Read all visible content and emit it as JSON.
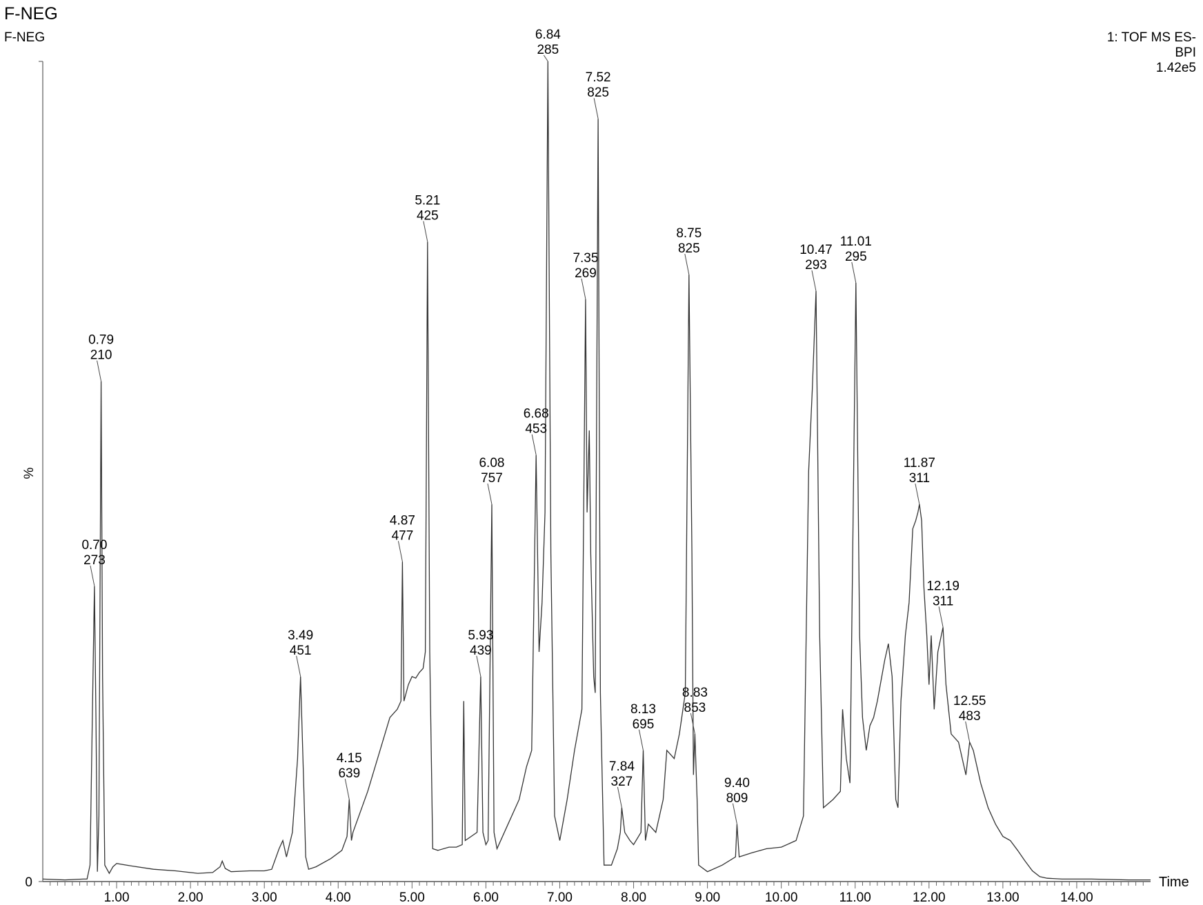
{
  "header": {
    "title": "F-NEG",
    "subtitle": "F-NEG",
    "info_line1": "1: TOF MS ES-",
    "info_line2": "BPI",
    "info_line3": "1.42e5"
  },
  "chart_data": {
    "type": "line",
    "title": "F-NEG",
    "xlabel": "Time",
    "ylabel": "%",
    "xlim": [
      0.0,
      15.0
    ],
    "ylim": [
      0,
      100
    ],
    "xticks": [
      "1.00",
      "2.00",
      "3.00",
      "4.00",
      "5.00",
      "6.00",
      "7.00",
      "8.00",
      "9.00",
      "10.00",
      "11.00",
      "12.00",
      "13.00",
      "14.00"
    ],
    "ytick_label": "0",
    "series": [
      {
        "values_time_percent": [
          [
            0.0,
            0.3
          ],
          [
            0.3,
            0.2
          ],
          [
            0.55,
            0.3
          ],
          [
            0.6,
            0.3
          ],
          [
            0.64,
            2.0
          ],
          [
            0.68,
            25
          ],
          [
            0.7,
            36
          ],
          [
            0.72,
            20
          ],
          [
            0.74,
            1.2
          ],
          [
            0.76,
            8
          ],
          [
            0.79,
            61
          ],
          [
            0.81,
            25
          ],
          [
            0.84,
            2
          ],
          [
            0.9,
            1.0
          ],
          [
            0.95,
            1.8
          ],
          [
            1.0,
            2.2
          ],
          [
            1.2,
            1.9
          ],
          [
            1.5,
            1.5
          ],
          [
            1.8,
            1.3
          ],
          [
            2.1,
            1.0
          ],
          [
            2.3,
            1.1
          ],
          [
            2.4,
            1.8
          ],
          [
            2.43,
            2.5
          ],
          [
            2.47,
            1.6
          ],
          [
            2.55,
            1.2
          ],
          [
            2.8,
            1.3
          ],
          [
            3.0,
            1.3
          ],
          [
            3.1,
            1.5
          ],
          [
            3.2,
            4
          ],
          [
            3.25,
            5
          ],
          [
            3.3,
            3
          ],
          [
            3.38,
            6
          ],
          [
            3.45,
            15
          ],
          [
            3.49,
            25
          ],
          [
            3.53,
            13
          ],
          [
            3.56,
            3
          ],
          [
            3.6,
            1.5
          ],
          [
            3.7,
            1.8
          ],
          [
            3.9,
            2.8
          ],
          [
            4.05,
            3.8
          ],
          [
            4.12,
            5.5
          ],
          [
            4.15,
            10
          ],
          [
            4.18,
            5
          ],
          [
            4.2,
            6
          ],
          [
            4.4,
            11
          ],
          [
            4.6,
            17
          ],
          [
            4.7,
            20
          ],
          [
            4.8,
            21
          ],
          [
            4.85,
            22
          ],
          [
            4.87,
            39
          ],
          [
            4.89,
            22
          ],
          [
            4.95,
            24
          ],
          [
            5.0,
            25
          ],
          [
            5.05,
            24.8
          ],
          [
            5.1,
            25.5
          ],
          [
            5.15,
            26
          ],
          [
            5.18,
            28
          ],
          [
            5.21,
            78
          ],
          [
            5.24,
            28
          ],
          [
            5.28,
            4
          ],
          [
            5.35,
            3.8
          ],
          [
            5.5,
            4.2
          ],
          [
            5.6,
            4.2
          ],
          [
            5.68,
            4.5
          ],
          [
            5.7,
            22
          ],
          [
            5.72,
            5
          ],
          [
            5.8,
            5.5
          ],
          [
            5.88,
            6
          ],
          [
            5.93,
            25
          ],
          [
            5.96,
            6
          ],
          [
            6.0,
            4.5
          ],
          [
            6.03,
            5
          ],
          [
            6.08,
            46
          ],
          [
            6.11,
            6
          ],
          [
            6.15,
            4
          ],
          [
            6.3,
            7
          ],
          [
            6.45,
            10
          ],
          [
            6.55,
            14
          ],
          [
            6.62,
            16
          ],
          [
            6.68,
            52
          ],
          [
            6.72,
            28
          ],
          [
            6.76,
            34
          ],
          [
            6.8,
            45
          ],
          [
            6.84,
            100
          ],
          [
            6.88,
            40
          ],
          [
            6.93,
            8
          ],
          [
            7.0,
            5
          ],
          [
            7.1,
            10
          ],
          [
            7.2,
            16
          ],
          [
            7.3,
            21
          ],
          [
            7.35,
            71
          ],
          [
            7.37,
            45
          ],
          [
            7.4,
            55
          ],
          [
            7.42,
            40
          ],
          [
            7.46,
            25
          ],
          [
            7.48,
            23
          ],
          [
            7.52,
            93
          ],
          [
            7.55,
            23
          ],
          [
            7.6,
            2
          ],
          [
            7.7,
            2
          ],
          [
            7.78,
            4
          ],
          [
            7.82,
            6
          ],
          [
            7.84,
            9
          ],
          [
            7.88,
            6
          ],
          [
            7.95,
            5
          ],
          [
            8.0,
            4.5
          ],
          [
            8.1,
            6
          ],
          [
            8.13,
            16
          ],
          [
            8.16,
            5
          ],
          [
            8.2,
            7
          ],
          [
            8.3,
            6
          ],
          [
            8.4,
            10
          ],
          [
            8.45,
            16
          ],
          [
            8.55,
            15
          ],
          [
            8.62,
            18
          ],
          [
            8.7,
            23
          ],
          [
            8.75,
            74
          ],
          [
            8.79,
            40
          ],
          [
            8.81,
            13
          ],
          [
            8.83,
            18
          ],
          [
            8.86,
            10
          ],
          [
            8.88,
            2
          ],
          [
            9.0,
            1.2
          ],
          [
            9.2,
            2
          ],
          [
            9.38,
            3
          ],
          [
            9.4,
            7
          ],
          [
            9.43,
            3
          ],
          [
            9.6,
            3.5
          ],
          [
            9.8,
            4
          ],
          [
            10.0,
            4.2
          ],
          [
            10.2,
            5
          ],
          [
            10.3,
            8
          ],
          [
            10.37,
            50
          ],
          [
            10.42,
            60
          ],
          [
            10.47,
            72
          ],
          [
            10.52,
            30
          ],
          [
            10.57,
            9
          ],
          [
            10.7,
            10
          ],
          [
            10.8,
            11
          ],
          [
            10.83,
            21
          ],
          [
            10.88,
            15
          ],
          [
            10.93,
            12
          ],
          [
            11.01,
            73
          ],
          [
            11.06,
            30
          ],
          [
            11.1,
            20
          ],
          [
            11.15,
            16
          ],
          [
            11.2,
            19
          ],
          [
            11.25,
            20
          ],
          [
            11.3,
            22
          ],
          [
            11.4,
            27
          ],
          [
            11.45,
            29
          ],
          [
            11.5,
            25
          ],
          [
            11.55,
            10
          ],
          [
            11.58,
            9
          ],
          [
            11.62,
            22
          ],
          [
            11.68,
            30
          ],
          [
            11.73,
            34
          ],
          [
            11.78,
            43
          ],
          [
            11.82,
            44
          ],
          [
            11.85,
            45
          ],
          [
            11.87,
            46
          ],
          [
            11.9,
            44
          ],
          [
            11.93,
            36
          ],
          [
            11.97,
            30
          ],
          [
            12.0,
            24
          ],
          [
            12.03,
            30
          ],
          [
            12.07,
            21
          ],
          [
            12.12,
            28
          ],
          [
            12.19,
            31
          ],
          [
            12.23,
            24
          ],
          [
            12.3,
            18
          ],
          [
            12.4,
            17
          ],
          [
            12.5,
            13
          ],
          [
            12.55,
            17
          ],
          [
            12.6,
            16
          ],
          [
            12.7,
            12
          ],
          [
            12.8,
            9
          ],
          [
            12.9,
            7
          ],
          [
            13.0,
            5.5
          ],
          [
            13.1,
            5
          ],
          [
            13.2,
            3.8
          ],
          [
            13.3,
            2.5
          ],
          [
            13.4,
            1.3
          ],
          [
            13.5,
            0.6
          ],
          [
            13.6,
            0.4
          ],
          [
            13.8,
            0.3
          ],
          [
            14.2,
            0.3
          ],
          [
            14.7,
            0.2
          ],
          [
            15.0,
            0.2
          ]
        ]
      }
    ],
    "annotations": [
      {
        "time": "0.70",
        "mass": "273",
        "x": 0.7
      },
      {
        "time": "0.79",
        "mass": "210",
        "x": 0.79
      },
      {
        "time": "3.49",
        "mass": "451",
        "x": 3.49
      },
      {
        "time": "4.15",
        "mass": "639",
        "x": 4.15
      },
      {
        "time": "4.87",
        "mass": "477",
        "x": 4.87
      },
      {
        "time": "5.21",
        "mass": "425",
        "x": 5.21
      },
      {
        "time": "5.93",
        "mass": "439",
        "x": 5.93
      },
      {
        "time": "6.08",
        "mass": "757",
        "x": 6.08
      },
      {
        "time": "6.68",
        "mass": "453",
        "x": 6.68
      },
      {
        "time": "6.84",
        "mass": "285",
        "x": 6.84
      },
      {
        "time": "7.35",
        "mass": "269",
        "x": 7.35
      },
      {
        "time": "7.52",
        "mass": "825",
        "x": 7.52
      },
      {
        "time": "7.84",
        "mass": "327",
        "x": 7.84
      },
      {
        "time": "8.13",
        "mass": "695",
        "x": 8.13
      },
      {
        "time": "8.75",
        "mass": "825",
        "x": 8.75
      },
      {
        "time": "8.83",
        "mass": "853",
        "x": 8.83
      },
      {
        "time": "9.40",
        "mass": "809",
        "x": 9.4
      },
      {
        "time": "10.47",
        "mass": "293",
        "x": 10.47
      },
      {
        "time": "11.01",
        "mass": "295",
        "x": 11.01
      },
      {
        "time": "11.87",
        "mass": "311",
        "x": 11.87
      },
      {
        "time": "12.19",
        "mass": "311",
        "x": 12.19
      },
      {
        "time": "12.55",
        "mass": "483",
        "x": 12.55
      }
    ],
    "legend": "none",
    "grid": false
  }
}
